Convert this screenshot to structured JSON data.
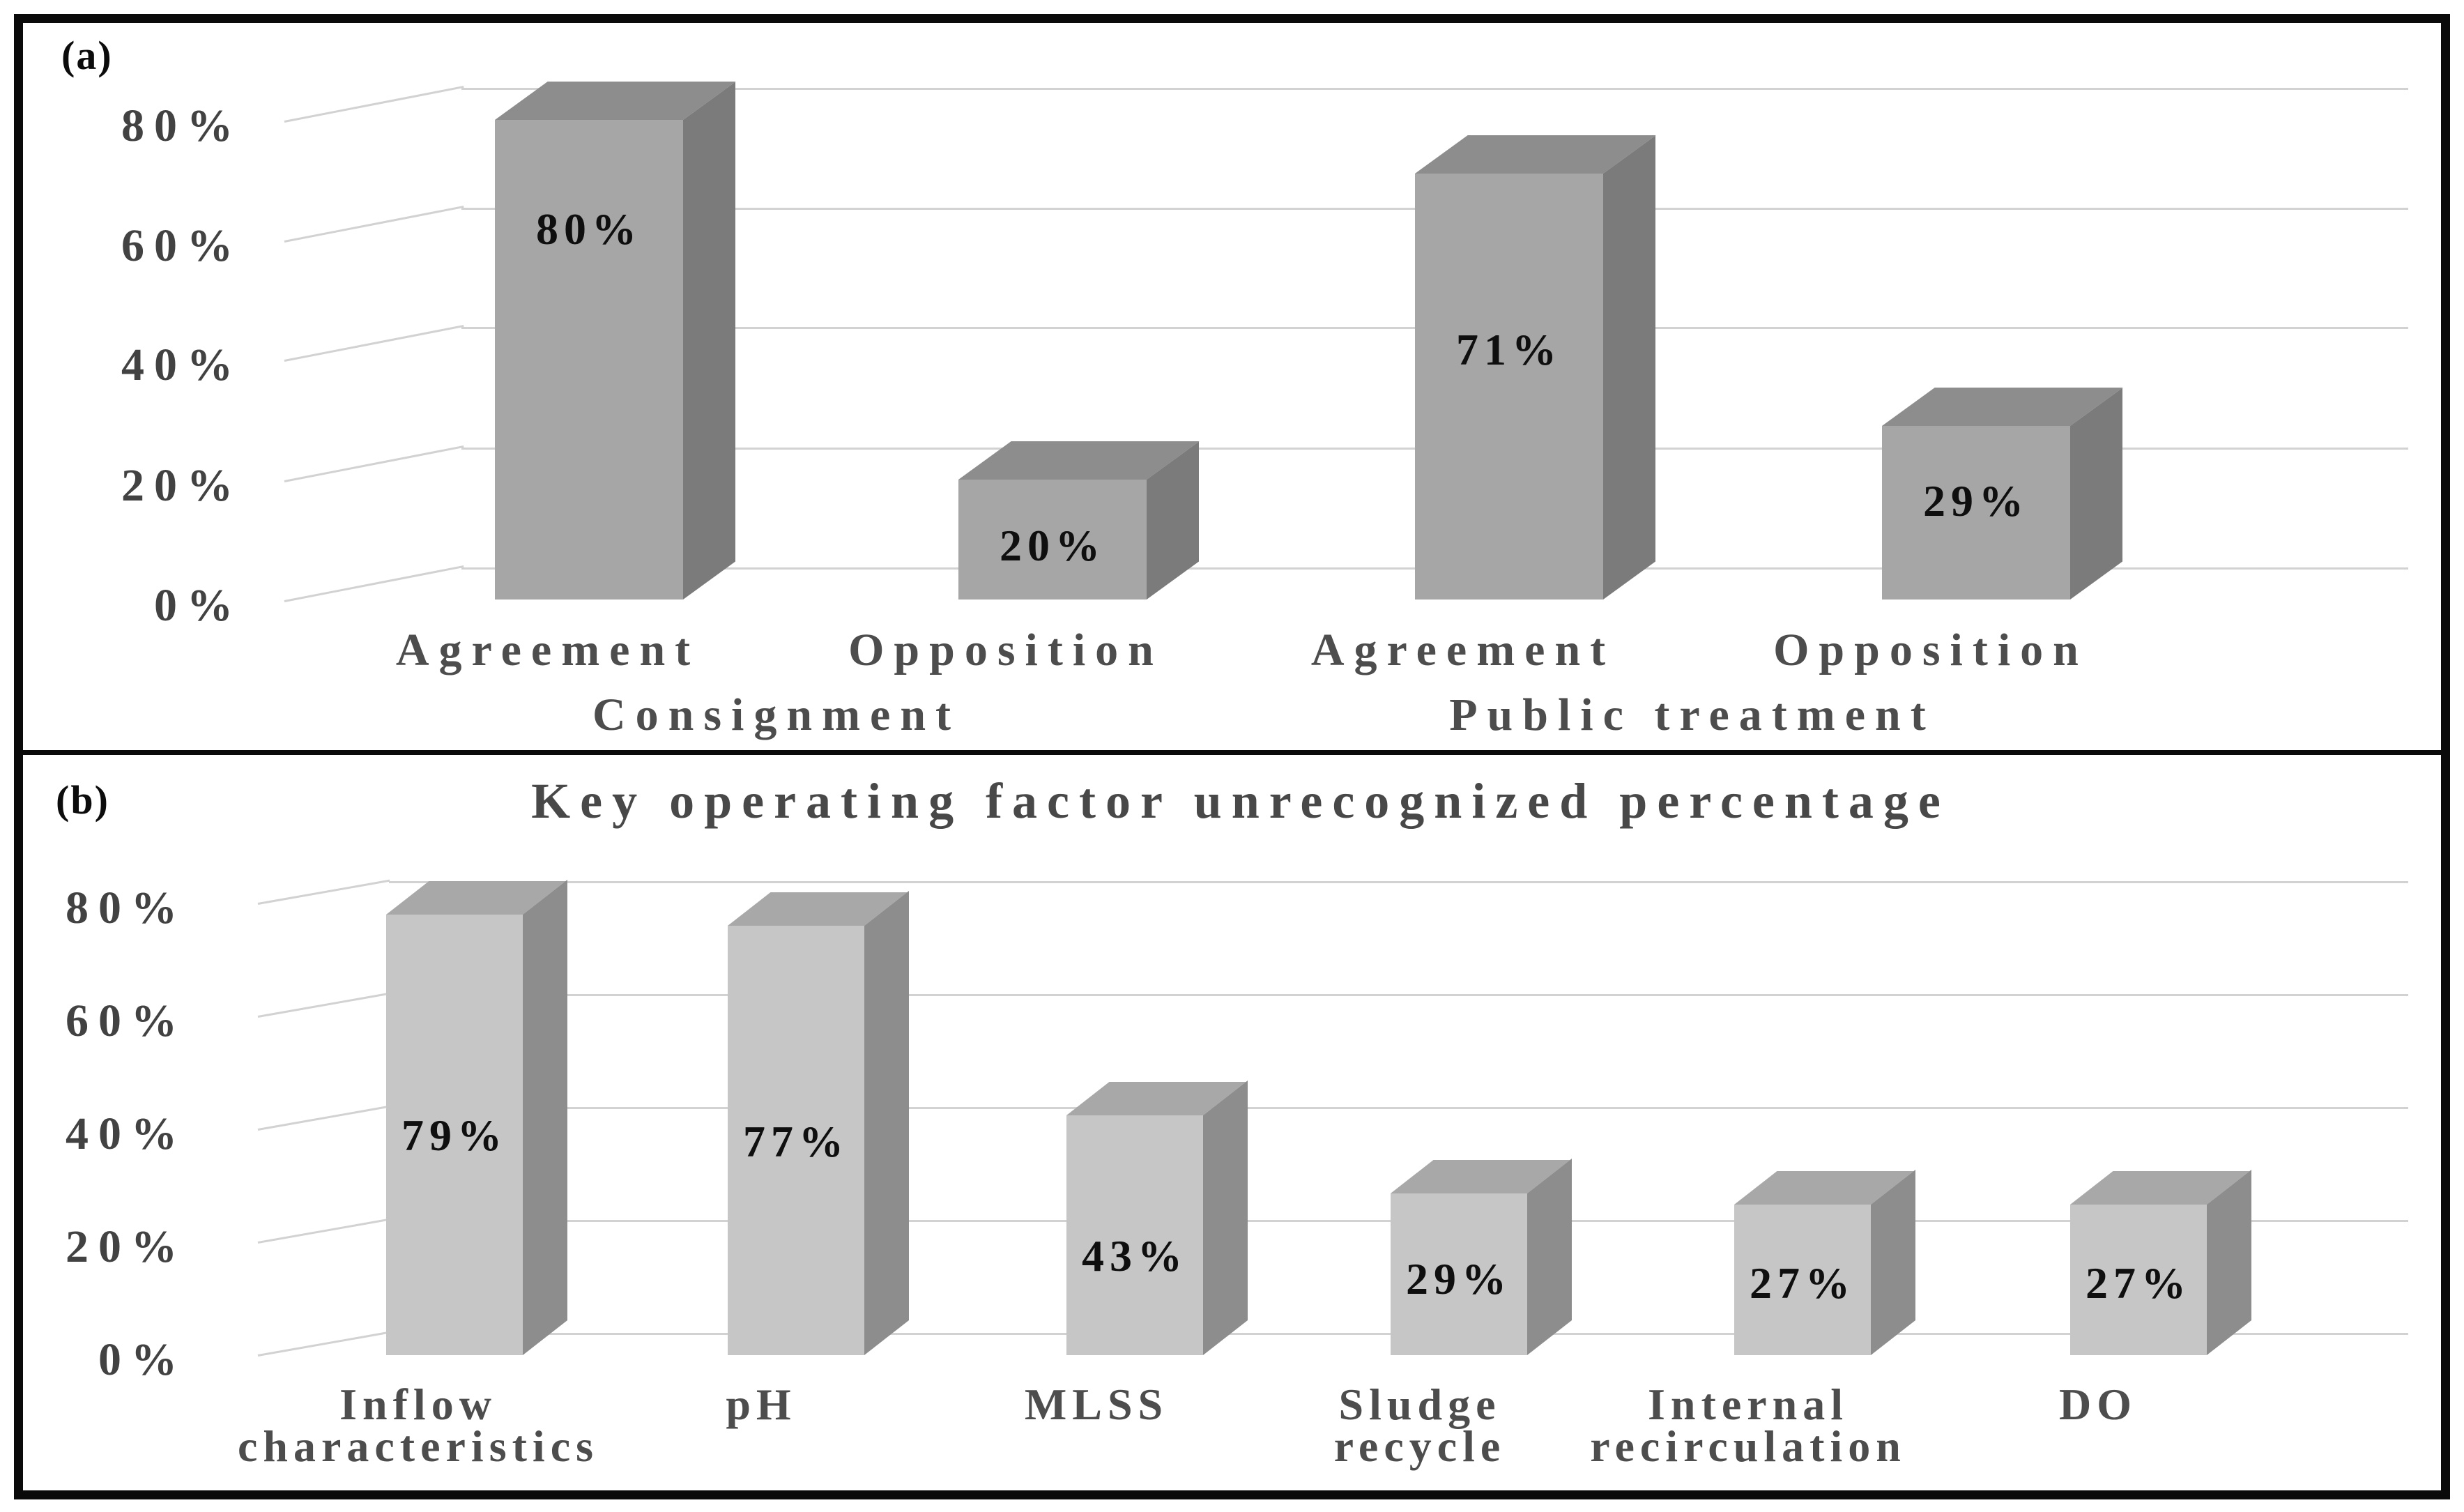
{
  "figure": {
    "background": "#ffffff",
    "border_color": "#0a0a0a",
    "gridline_color": "#d2d2d2",
    "axis_text_color": "#424242",
    "category_text_color": "#4d4d4d",
    "data_label_color": "#0f0f0f"
  },
  "chart_data": [
    {
      "type": "bar",
      "style": "3d-column",
      "panel_label": "(a)",
      "title": "",
      "categories": [
        "Agreement",
        "Opposition",
        "Agreement",
        "Opposition"
      ],
      "group_labels": [
        "Consignment",
        "Public treatment"
      ],
      "values": [
        80,
        20,
        71,
        29
      ],
      "data_labels": [
        "80%",
        "20%",
        "71%",
        "29%"
      ],
      "y_ticks": [
        "80%",
        "60%",
        "40%",
        "20%",
        "0%"
      ],
      "ylabel": "",
      "xlabel": "",
      "ylim": [
        0,
        90
      ],
      "grid": true,
      "legend": false,
      "colors": {
        "bar_front": "#a6a6a6",
        "bar_side": "#7b7b7b",
        "bar_top": "#8d8d8d"
      }
    },
    {
      "type": "bar",
      "style": "3d-column",
      "panel_label": "(b)",
      "title": "Key operating factor unrecognized percentage",
      "categories": [
        "Inflow characteristics",
        "pH",
        "MLSS",
        "Sludge recycle",
        "Internal recirculation",
        "DO"
      ],
      "category_lines": [
        "Inflow\ncharacteristics",
        "pH",
        "MLSS",
        "Sludge\nrecycle",
        "Internal\nrecirculation",
        "DO"
      ],
      "values": [
        79,
        77,
        43,
        29,
        27,
        27
      ],
      "data_labels": [
        "79%",
        "77%",
        "43%",
        "29%",
        "27%",
        "27%"
      ],
      "y_ticks": [
        "80%",
        "60%",
        "40%",
        "20%",
        "0%"
      ],
      "ylabel": "",
      "xlabel": "",
      "ylim": [
        0,
        90
      ],
      "grid": true,
      "legend": false,
      "colors": {
        "bar_front": "#c6c6c6",
        "bar_side": "#8d8d8d",
        "bar_top": "#a8a8a8"
      }
    }
  ]
}
